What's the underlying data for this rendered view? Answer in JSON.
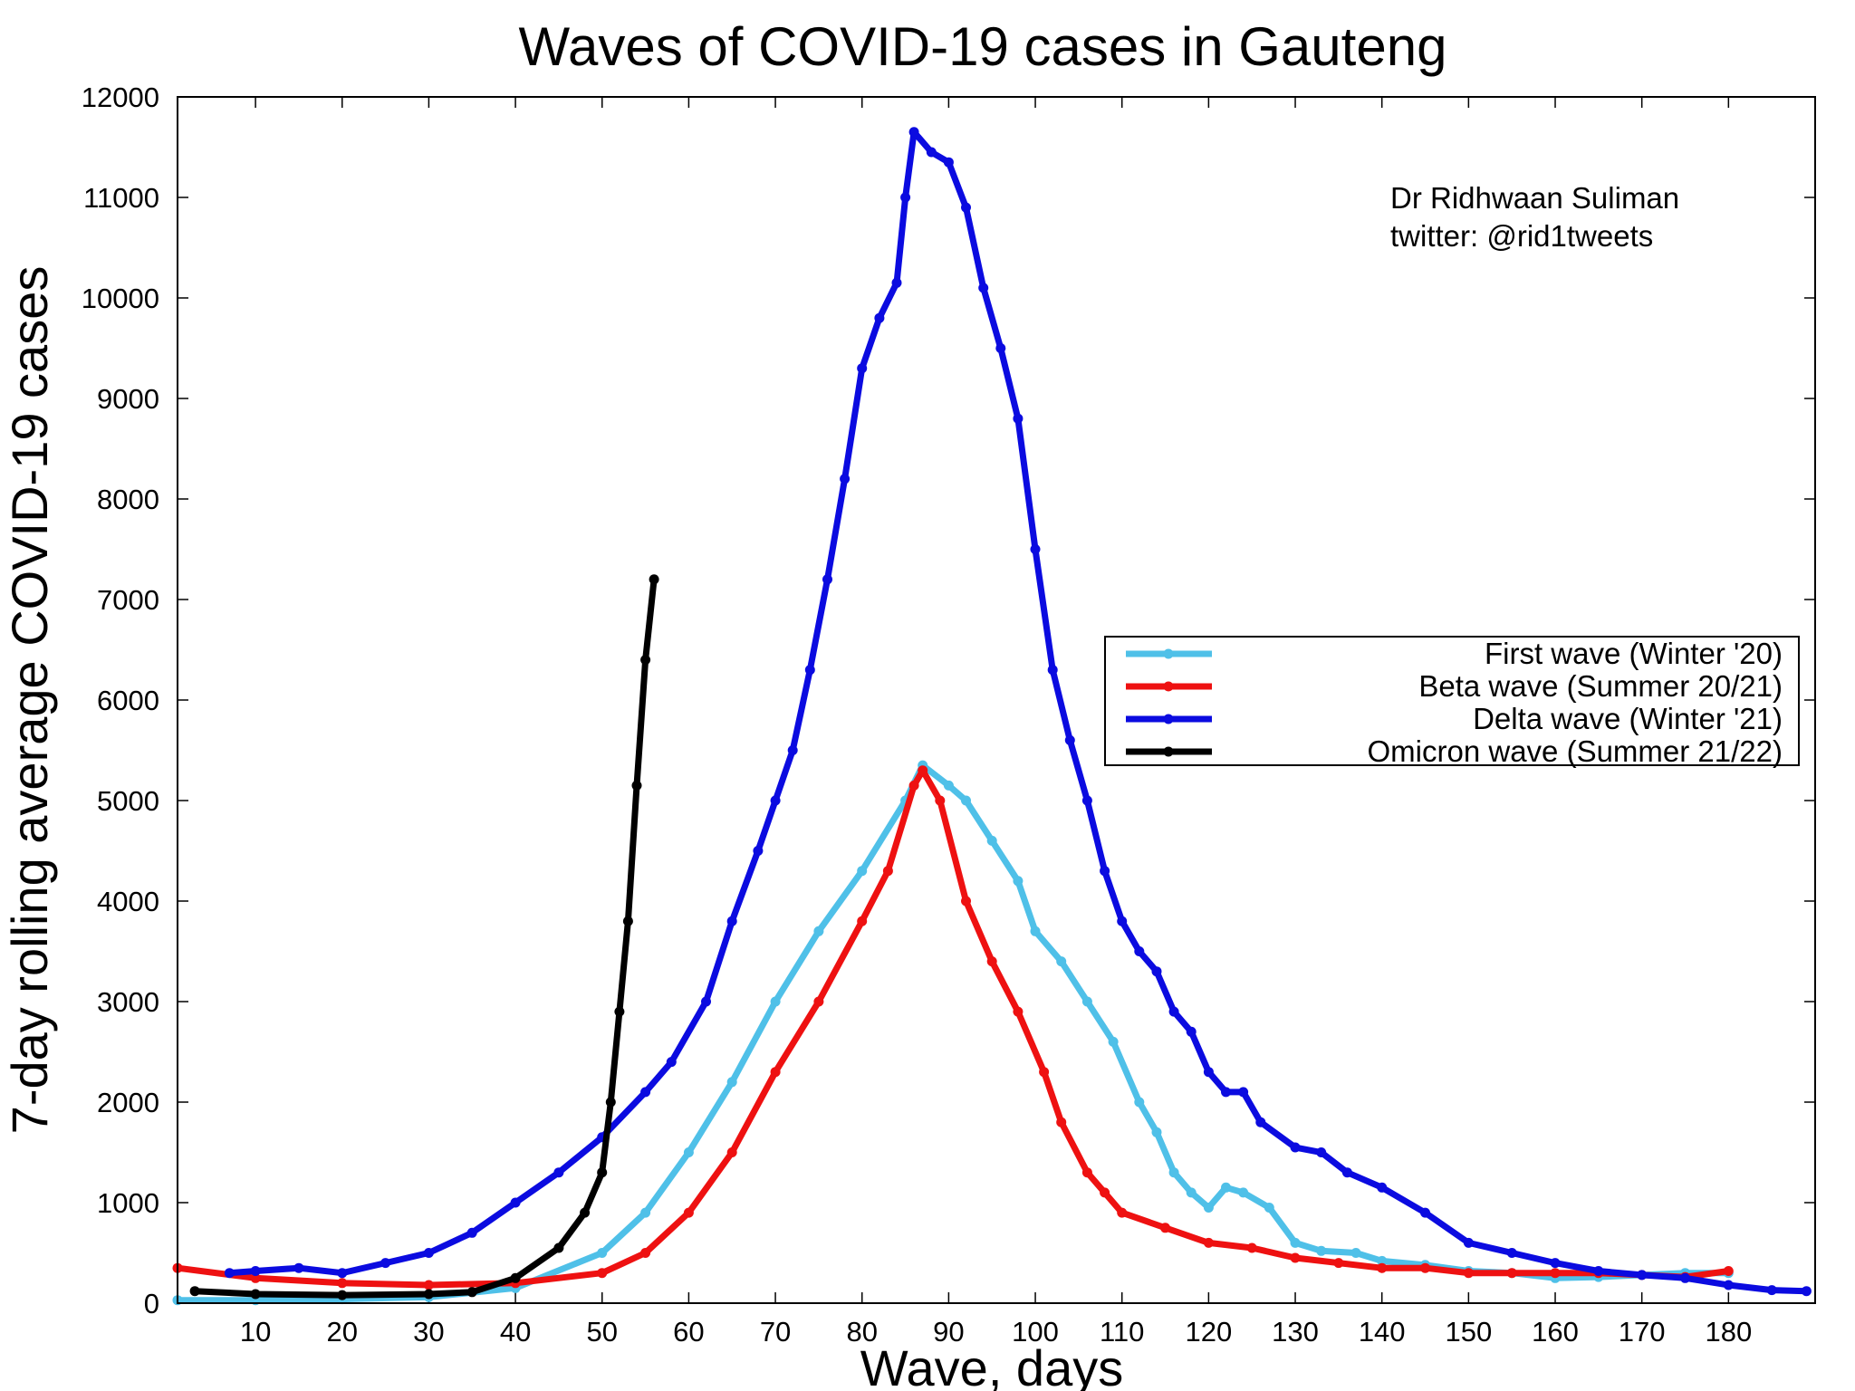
{
  "chart_data": {
    "type": "line",
    "title": "Waves of COVID-19 cases in Gauteng",
    "xlabel": "Wave, days",
    "ylabel": "7-day rolling average COVID-19 cases",
    "xlim": [
      1,
      190
    ],
    "ylim": [
      0,
      12000
    ],
    "x_ticks": [
      10,
      20,
      30,
      40,
      50,
      60,
      70,
      80,
      90,
      100,
      110,
      120,
      130,
      140,
      150,
      160,
      170,
      180
    ],
    "y_ticks": [
      0,
      1000,
      2000,
      3000,
      4000,
      5000,
      6000,
      7000,
      8000,
      9000,
      10000,
      11000,
      12000
    ],
    "grid": false,
    "legend_position": "right",
    "annotation": [
      "Dr Ridhwaan Suliman",
      "twitter: @rid1tweets"
    ],
    "series": [
      {
        "name": "First wave (Winter '20)",
        "color": "#4fc0e8",
        "points": [
          [
            1,
            30
          ],
          [
            10,
            30
          ],
          [
            20,
            40
          ],
          [
            30,
            60
          ],
          [
            40,
            150
          ],
          [
            50,
            500
          ],
          [
            55,
            900
          ],
          [
            60,
            1500
          ],
          [
            65,
            2200
          ],
          [
            70,
            3000
          ],
          [
            75,
            3700
          ],
          [
            80,
            4300
          ],
          [
            85,
            5000
          ],
          [
            87,
            5350
          ],
          [
            90,
            5150
          ],
          [
            92,
            5000
          ],
          [
            95,
            4600
          ],
          [
            98,
            4200
          ],
          [
            100,
            3700
          ],
          [
            103,
            3400
          ],
          [
            106,
            3000
          ],
          [
            109,
            2600
          ],
          [
            112,
            2000
          ],
          [
            114,
            1700
          ],
          [
            116,
            1300
          ],
          [
            118,
            1100
          ],
          [
            120,
            950
          ],
          [
            122,
            1150
          ],
          [
            124,
            1100
          ],
          [
            127,
            950
          ],
          [
            130,
            600
          ],
          [
            133,
            520
          ],
          [
            137,
            500
          ],
          [
            140,
            420
          ],
          [
            145,
            380
          ],
          [
            150,
            320
          ],
          [
            155,
            300
          ],
          [
            160,
            250
          ],
          [
            165,
            260
          ],
          [
            170,
            280
          ],
          [
            175,
            300
          ],
          [
            180,
            300
          ]
        ]
      },
      {
        "name": "Beta wave (Summer 20/21)",
        "color": "#ee1111",
        "points": [
          [
            1,
            350
          ],
          [
            10,
            250
          ],
          [
            20,
            200
          ],
          [
            30,
            180
          ],
          [
            40,
            200
          ],
          [
            50,
            300
          ],
          [
            55,
            500
          ],
          [
            60,
            900
          ],
          [
            65,
            1500
          ],
          [
            70,
            2300
          ],
          [
            75,
            3000
          ],
          [
            80,
            3800
          ],
          [
            83,
            4300
          ],
          [
            86,
            5150
          ],
          [
            87,
            5300
          ],
          [
            89,
            5000
          ],
          [
            92,
            4000
          ],
          [
            95,
            3400
          ],
          [
            98,
            2900
          ],
          [
            101,
            2300
          ],
          [
            103,
            1800
          ],
          [
            106,
            1300
          ],
          [
            108,
            1100
          ],
          [
            110,
            900
          ],
          [
            115,
            750
          ],
          [
            120,
            600
          ],
          [
            125,
            550
          ],
          [
            130,
            450
          ],
          [
            135,
            400
          ],
          [
            140,
            350
          ],
          [
            145,
            350
          ],
          [
            150,
            300
          ],
          [
            155,
            300
          ],
          [
            160,
            300
          ],
          [
            165,
            300
          ],
          [
            170,
            280
          ],
          [
            175,
            260
          ],
          [
            180,
            320
          ]
        ]
      },
      {
        "name": "Delta wave (Winter '21)",
        "color": "#0b0be0",
        "points": [
          [
            7,
            300
          ],
          [
            10,
            320
          ],
          [
            15,
            350
          ],
          [
            20,
            300
          ],
          [
            25,
            400
          ],
          [
            30,
            500
          ],
          [
            35,
            700
          ],
          [
            40,
            1000
          ],
          [
            45,
            1300
          ],
          [
            50,
            1650
          ],
          [
            55,
            2100
          ],
          [
            58,
            2400
          ],
          [
            62,
            3000
          ],
          [
            65,
            3800
          ],
          [
            68,
            4500
          ],
          [
            70,
            5000
          ],
          [
            72,
            5500
          ],
          [
            74,
            6300
          ],
          [
            76,
            7200
          ],
          [
            78,
            8200
          ],
          [
            80,
            9300
          ],
          [
            82,
            9800
          ],
          [
            84,
            10150
          ],
          [
            85,
            11000
          ],
          [
            86,
            11650
          ],
          [
            88,
            11450
          ],
          [
            90,
            11350
          ],
          [
            92,
            10900
          ],
          [
            94,
            10100
          ],
          [
            96,
            9500
          ],
          [
            98,
            8800
          ],
          [
            100,
            7500
          ],
          [
            102,
            6300
          ],
          [
            104,
            5600
          ],
          [
            106,
            5000
          ],
          [
            108,
            4300
          ],
          [
            110,
            3800
          ],
          [
            112,
            3500
          ],
          [
            114,
            3300
          ],
          [
            116,
            2900
          ],
          [
            118,
            2700
          ],
          [
            120,
            2300
          ],
          [
            122,
            2100
          ],
          [
            124,
            2100
          ],
          [
            126,
            1800
          ],
          [
            130,
            1550
          ],
          [
            133,
            1500
          ],
          [
            136,
            1300
          ],
          [
            140,
            1150
          ],
          [
            145,
            900
          ],
          [
            150,
            600
          ],
          [
            155,
            500
          ],
          [
            160,
            400
          ],
          [
            165,
            320
          ],
          [
            170,
            280
          ],
          [
            175,
            250
          ],
          [
            180,
            180
          ],
          [
            185,
            130
          ],
          [
            189,
            120
          ]
        ]
      },
      {
        "name": "Omicron wave (Summer 21/22)",
        "color": "#000000",
        "points": [
          [
            3,
            120
          ],
          [
            10,
            90
          ],
          [
            20,
            80
          ],
          [
            30,
            90
          ],
          [
            35,
            110
          ],
          [
            40,
            250
          ],
          [
            45,
            550
          ],
          [
            48,
            900
          ],
          [
            50,
            1300
          ],
          [
            51,
            2000
          ],
          [
            52,
            2900
          ],
          [
            53,
            3800
          ],
          [
            54,
            5150
          ],
          [
            55,
            6400
          ],
          [
            56,
            7200
          ]
        ]
      }
    ]
  }
}
